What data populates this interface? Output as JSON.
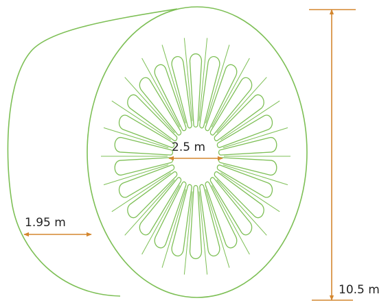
{
  "colors": {
    "outline": "#7dbf55",
    "dimension": "#d4862e",
    "text": "#222222",
    "background": "#ffffff"
  },
  "diagram": {
    "fin_count": 26,
    "dimensions": {
      "inner_diameter": "2.5 m",
      "depth": "1.95 m",
      "height": "10.5 m"
    }
  }
}
